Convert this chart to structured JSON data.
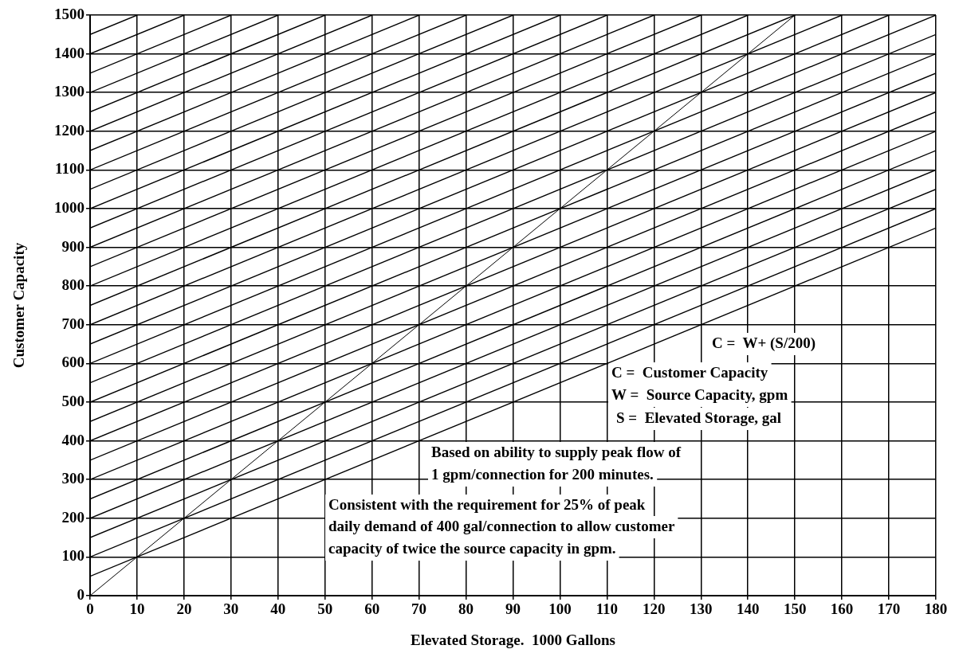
{
  "chart_data": {
    "type": "line",
    "xlabel": "Elevated Storage.  1000 Gallons",
    "ylabel": "Customer Capacity",
    "xlim": [
      0,
      180
    ],
    "ylim": [
      0,
      1500
    ],
    "xticks": [
      0,
      10,
      20,
      30,
      40,
      50,
      60,
      70,
      80,
      90,
      100,
      110,
      120,
      130,
      140,
      150,
      160,
      170,
      180
    ],
    "yticks": [
      0,
      100,
      200,
      300,
      400,
      500,
      600,
      700,
      800,
      900,
      1000,
      1100,
      1200,
      1300,
      1400,
      1500
    ],
    "grid": true,
    "legend": false,
    "marker": "none",
    "line_style": "solid",
    "series": [
      {
        "color": "#000000",
        "x": [
          0,
          150
        ],
        "values": [
          0,
          1500
        ]
      },
      {
        "color": "#000000",
        "x": [
          0,
          180
        ],
        "values": [
          50,
          950
        ]
      },
      {
        "color": "#000000",
        "x": [
          0,
          180
        ],
        "values": [
          100,
          1000
        ]
      },
      {
        "color": "#000000",
        "x": [
          0,
          180
        ],
        "values": [
          150,
          1050
        ]
      },
      {
        "color": "#000000",
        "x": [
          0,
          180
        ],
        "values": [
          200,
          1100
        ]
      },
      {
        "color": "#000000",
        "x": [
          0,
          180
        ],
        "values": [
          250,
          1150
        ]
      },
      {
        "color": "#000000",
        "x": [
          0,
          180
        ],
        "values": [
          300,
          1200
        ]
      },
      {
        "color": "#000000",
        "x": [
          0,
          180
        ],
        "values": [
          350,
          1250
        ]
      },
      {
        "color": "#000000",
        "x": [
          0,
          180
        ],
        "values": [
          400,
          1300
        ]
      },
      {
        "color": "#000000",
        "x": [
          0,
          180
        ],
        "values": [
          450,
          1350
        ]
      },
      {
        "color": "#000000",
        "x": [
          0,
          180
        ],
        "values": [
          500,
          1400
        ]
      },
      {
        "color": "#000000",
        "x": [
          0,
          180
        ],
        "values": [
          550,
          1450
        ]
      },
      {
        "color": "#000000",
        "x": [
          0,
          180
        ],
        "values": [
          600,
          1500
        ]
      },
      {
        "color": "#000000",
        "x": [
          0,
          170
        ],
        "values": [
          650,
          1500
        ]
      },
      {
        "color": "#000000",
        "x": [
          0,
          160
        ],
        "values": [
          700,
          1500
        ]
      },
      {
        "color": "#000000",
        "x": [
          0,
          150
        ],
        "values": [
          750,
          1500
        ]
      },
      {
        "color": "#000000",
        "x": [
          0,
          140
        ],
        "values": [
          800,
          1500
        ]
      },
      {
        "color": "#000000",
        "x": [
          0,
          130
        ],
        "values": [
          850,
          1500
        ]
      },
      {
        "color": "#000000",
        "x": [
          0,
          120
        ],
        "values": [
          900,
          1500
        ]
      },
      {
        "color": "#000000",
        "x": [
          0,
          110
        ],
        "values": [
          950,
          1500
        ]
      },
      {
        "color": "#000000",
        "x": [
          0,
          100
        ],
        "values": [
          1000,
          1500
        ]
      },
      {
        "color": "#000000",
        "x": [
          0,
          90
        ],
        "values": [
          1050,
          1500
        ]
      },
      {
        "color": "#000000",
        "x": [
          0,
          80
        ],
        "values": [
          1100,
          1500
        ]
      },
      {
        "color": "#000000",
        "x": [
          0,
          70
        ],
        "values": [
          1150,
          1500
        ]
      },
      {
        "color": "#000000",
        "x": [
          0,
          60
        ],
        "values": [
          1200,
          1500
        ]
      },
      {
        "color": "#000000",
        "x": [
          0,
          50
        ],
        "values": [
          1250,
          1500
        ]
      },
      {
        "color": "#000000",
        "x": [
          0,
          40
        ],
        "values": [
          1300,
          1500
        ]
      },
      {
        "color": "#000000",
        "x": [
          0,
          30
        ],
        "values": [
          1350,
          1500
        ]
      },
      {
        "color": "#000000",
        "x": [
          0,
          20
        ],
        "values": [
          1400,
          1500
        ]
      },
      {
        "color": "#000000",
        "x": [
          0,
          10
        ],
        "values": [
          1450,
          1500
        ]
      }
    ],
    "annotations": [
      "C =  W+ (S/200)",
      "C =  Customer Capacity",
      "W =  Source Capacity, gpm",
      "S =  Elevated Storage, gal",
      "Based on ability to supply peak flow of",
      "1 gpm/connection for 200 minutes.",
      "Consistent with the requirement for 25% of peak",
      "daily demand of 400 gal/connection to allow customer",
      "capacity of twice the source capacity in gpm."
    ]
  }
}
